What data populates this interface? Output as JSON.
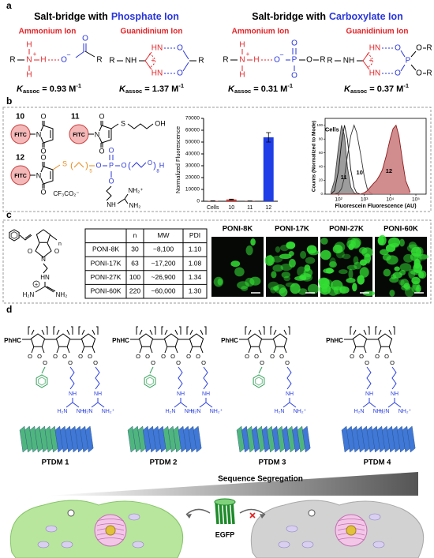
{
  "figure": {
    "panel_labels": [
      "a",
      "b",
      "c",
      "d"
    ],
    "panel_a": {
      "headings": [
        {
          "prefix": "Salt-bridge with",
          "ion": "Phosphate Ion"
        },
        {
          "prefix": "Salt-bridge with",
          "ion": "Carboxylate Ion"
        }
      ],
      "subheadings": [
        "Ammonium Ion",
        "Guanidinium Ion",
        "Ammonium Ion",
        "Guanidinium Ion"
      ],
      "k_symbol": "K",
      "k_sub": "assoc",
      "k_values": [
        "= 0.93 M",
        "= 1.37 M",
        "= 0.31 M",
        "= 0.37 M"
      ],
      "k_unit_exp": "-1",
      "atoms": {
        "R": "R",
        "N": "N",
        "H": "H",
        "O": "O",
        "NH": "NH",
        "HN": "HN",
        "P": "P",
        "plus": "+",
        "minus": "−"
      }
    },
    "panel_b": {
      "compounds": [
        "10",
        "11",
        "12"
      ],
      "fitc": "FITC",
      "atoms": {
        "O": "O",
        "N": "N",
        "S": "S",
        "OH": "OH",
        "P": "P",
        "H": "H",
        "NH": "NH",
        "NH2plus": "NH₂⁺",
        "NH2": "NH₂",
        "n5": "5",
        "n8": "8",
        "open": "(",
        "close": ")"
      },
      "counterion": "CF₃CO₂⁻"
    },
    "panel_c": {
      "atoms": {
        "n": "n",
        "O": "O",
        "N": "N",
        "HN": "HN",
        "H2N": "H₂N",
        "NH2": "NH₂",
        "plus": "+"
      },
      "table": {
        "columns": [
          "n",
          "MW",
          "PDI"
        ],
        "rows": [
          [
            "PONI-8K",
            "30",
            "~8,100",
            "1.10"
          ],
          [
            "PONI-17K",
            "63",
            "~17,200",
            "1.08"
          ],
          [
            "PONI-27K",
            "100",
            "~26,900",
            "1.34"
          ],
          [
            "PONI-60K",
            "220",
            "~60,000",
            "1.30"
          ]
        ]
      },
      "images": [
        "PONI-8K",
        "PONI-17K",
        "PONI-27K",
        "PONI-60K"
      ]
    },
    "panel_d": {
      "backbone_end": "PhHC",
      "atoms": {
        "O": "O",
        "NH": "NH",
        "H2N": "H₂N",
        "NH2plus": "NH₂⁺"
      },
      "polymers": [
        "PTDM 1",
        "PTDM 2",
        "PTDM 3",
        "PTDM 4"
      ],
      "gradient_label": "Sequence Segregation",
      "protein": "EGFP"
    }
  },
  "chart_data": [
    {
      "type": "bar",
      "ylabel": "Normalized Fluorescence",
      "categories": [
        "Cells",
        "10",
        "11",
        "12"
      ],
      "values": [
        300,
        1500,
        200,
        54000
      ],
      "errors": [
        100,
        300,
        100,
        4000
      ],
      "colors": [
        "#e0302b",
        "#e0302b",
        "#e0302b",
        "#1f3ee8"
      ],
      "ylim": [
        0,
        70000
      ],
      "yticks": [
        0,
        10000,
        20000,
        30000,
        40000,
        50000,
        60000,
        70000
      ]
    },
    {
      "type": "line",
      "xscale": "log",
      "xlabel": "Fluorescein Fluorescence (AU)",
      "ylabel": "Counts (Normalized to Mode)",
      "x": [
        50,
        70,
        100,
        130,
        170,
        220,
        300,
        400,
        500,
        700,
        1000,
        1300,
        1700,
        2200,
        3000,
        4000,
        5000,
        7000,
        10000,
        13000,
        17000,
        22000,
        30000,
        40000,
        60000
      ],
      "series": [
        {
          "name": "Cells",
          "color": "#444444",
          "fill": "#8c8c8c",
          "values": [
            2,
            20,
            70,
            100,
            85,
            40,
            10,
            2,
            0,
            0,
            0,
            0,
            0,
            0,
            0,
            0,
            0,
            0,
            0,
            0,
            0,
            0,
            0,
            0,
            0
          ]
        },
        {
          "name": "11",
          "color": "#111111",
          "values": [
            0,
            5,
            35,
            75,
            100,
            80,
            35,
            10,
            2,
            0,
            0,
            0,
            0,
            0,
            0,
            0,
            0,
            0,
            0,
            0,
            0,
            0,
            0,
            0,
            0
          ]
        },
        {
          "name": "10",
          "color": "#333333",
          "values": [
            0,
            0,
            2,
            8,
            25,
            55,
            85,
            100,
            90,
            60,
            25,
            8,
            2,
            0,
            0,
            0,
            0,
            0,
            0,
            0,
            0,
            0,
            0,
            0,
            0
          ]
        },
        {
          "name": "12",
          "color": "#8b1a1a",
          "fill": "#c9787a",
          "values": [
            0,
            0,
            0,
            0,
            0,
            0,
            0,
            0,
            0,
            0,
            2,
            5,
            10,
            15,
            20,
            28,
            35,
            55,
            80,
            95,
            100,
            85,
            50,
            20,
            3
          ]
        }
      ],
      "xlim": [
        30,
        250000
      ],
      "xticks": [
        {
          "value": 100,
          "label": "10²"
        },
        {
          "value": 1000,
          "label": "10³"
        },
        {
          "value": 10000,
          "label": "10⁴"
        },
        {
          "value": 100000,
          "label": "10⁵"
        }
      ],
      "ylim": [
        0,
        110
      ],
      "yticks": [
        0,
        20,
        40,
        60,
        80,
        100
      ]
    }
  ]
}
